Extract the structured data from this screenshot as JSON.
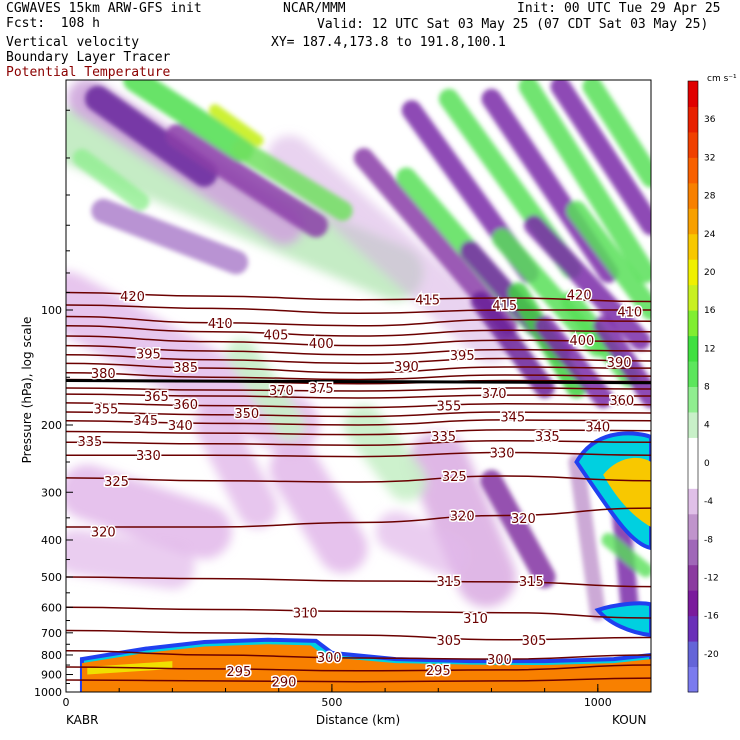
{
  "header": {
    "model": "CGWAVES 15km ARW-GFS init",
    "fcst": "Fcst:  108 h",
    "field1": "Vertical velocity",
    "field2": "Boundary Layer Tracer",
    "field3": "Potential Temperature",
    "org": "NCAR/MMM",
    "init": "Init: 00 UTC Tue 29 Apr 25",
    "valid": "Valid: 12 UTC Sat 03 May 25 (07 CDT Sat 03 May 25)",
    "xy": "XY= 187.4,173.8 to 191.8,100.1"
  },
  "chart_data": {
    "type": "heatmap",
    "xlabel": "Distance (km)",
    "ylabel": "Pressure (hPa), log scale",
    "x_ticks": [
      0,
      500,
      1000
    ],
    "xlim": [
      0,
      1100
    ],
    "y_ticks": [
      100,
      200,
      300,
      400,
      500,
      600,
      700,
      800,
      900,
      1000
    ],
    "ylim": [
      1000,
      25
    ],
    "y_scale": "log",
    "left_station": "KABR",
    "right_station": "KOUN",
    "colorbar": {
      "unit": "cm s⁻¹",
      "ticks": [
        36,
        32,
        28,
        24,
        20,
        16,
        12,
        8,
        4,
        0,
        -4,
        -8,
        -12,
        -16,
        -20
      ],
      "colors": [
        "#7b7bef",
        "#6464d8",
        "#6a2fb8",
        "#7a1a9c",
        "#8b3aa0",
        "#a067b8",
        "#c094cc",
        "#e0c0e8",
        "#ffffff",
        "#ffffff",
        "#c8f0c8",
        "#90ee90",
        "#5ce65c",
        "#40e040",
        "#80ee30",
        "#c8f020",
        "#f0f000",
        "#f8c800",
        "#f8a000",
        "#f88000",
        "#f86000",
        "#f04000",
        "#e82000",
        "#e00000"
      ]
    },
    "contour_labels": [
      {
        "x": 125,
        "p": 92,
        "v": "420"
      },
      {
        "x": 290,
        "p": 108,
        "v": "410"
      },
      {
        "x": 395,
        "p": 116,
        "v": "405"
      },
      {
        "x": 480,
        "p": 122,
        "v": "400"
      },
      {
        "x": 155,
        "p": 130,
        "v": "395"
      },
      {
        "x": 225,
        "p": 141,
        "v": "385"
      },
      {
        "x": 70,
        "p": 146,
        "v": "380"
      },
      {
        "x": 640,
        "p": 140,
        "v": "390"
      },
      {
        "x": 745,
        "p": 131,
        "v": "395"
      },
      {
        "x": 680,
        "p": 94,
        "v": "415"
      },
      {
        "x": 825,
        "p": 97,
        "v": "415"
      },
      {
        "x": 965,
        "p": 91,
        "v": "420"
      },
      {
        "x": 1060,
        "p": 101,
        "v": "410"
      },
      {
        "x": 970,
        "p": 120,
        "v": "400"
      },
      {
        "x": 1040,
        "p": 137,
        "v": "390"
      },
      {
        "x": 405,
        "p": 162,
        "v": "370"
      },
      {
        "x": 480,
        "p": 160,
        "v": "375"
      },
      {
        "x": 805,
        "p": 165,
        "v": "370"
      },
      {
        "x": 170,
        "p": 168,
        "v": "365"
      },
      {
        "x": 225,
        "p": 176,
        "v": "360"
      },
      {
        "x": 75,
        "p": 181,
        "v": "355"
      },
      {
        "x": 340,
        "p": 186,
        "v": "350"
      },
      {
        "x": 720,
        "p": 178,
        "v": "355"
      },
      {
        "x": 1045,
        "p": 172,
        "v": "360"
      },
      {
        "x": 150,
        "p": 194,
        "v": "345"
      },
      {
        "x": 215,
        "p": 200,
        "v": "340"
      },
      {
        "x": 840,
        "p": 190,
        "v": "345"
      },
      {
        "x": 1000,
        "p": 202,
        "v": "340"
      },
      {
        "x": 45,
        "p": 220,
        "v": "335"
      },
      {
        "x": 710,
        "p": 214,
        "v": "335"
      },
      {
        "x": 905,
        "p": 214,
        "v": "335"
      },
      {
        "x": 155,
        "p": 240,
        "v": "330"
      },
      {
        "x": 820,
        "p": 236,
        "v": "330"
      },
      {
        "x": 95,
        "p": 280,
        "v": "325"
      },
      {
        "x": 730,
        "p": 272,
        "v": "325"
      },
      {
        "x": 70,
        "p": 380,
        "v": "320"
      },
      {
        "x": 745,
        "p": 345,
        "v": "320"
      },
      {
        "x": 860,
        "p": 350,
        "v": "320"
      },
      {
        "x": 720,
        "p": 512,
        "v": "315"
      },
      {
        "x": 875,
        "p": 512,
        "v": "315"
      },
      {
        "x": 450,
        "p": 620,
        "v": "310"
      },
      {
        "x": 770,
        "p": 640,
        "v": "310"
      },
      {
        "x": 720,
        "p": 730,
        "v": "305"
      },
      {
        "x": 880,
        "p": 730,
        "v": "305"
      },
      {
        "x": 495,
        "p": 810,
        "v": "300"
      },
      {
        "x": 815,
        "p": 820,
        "v": "300"
      },
      {
        "x": 325,
        "p": 880,
        "v": "295"
      },
      {
        "x": 700,
        "p": 875,
        "v": "295"
      },
      {
        "x": 410,
        "p": 940,
        "v": "290"
      }
    ]
  }
}
